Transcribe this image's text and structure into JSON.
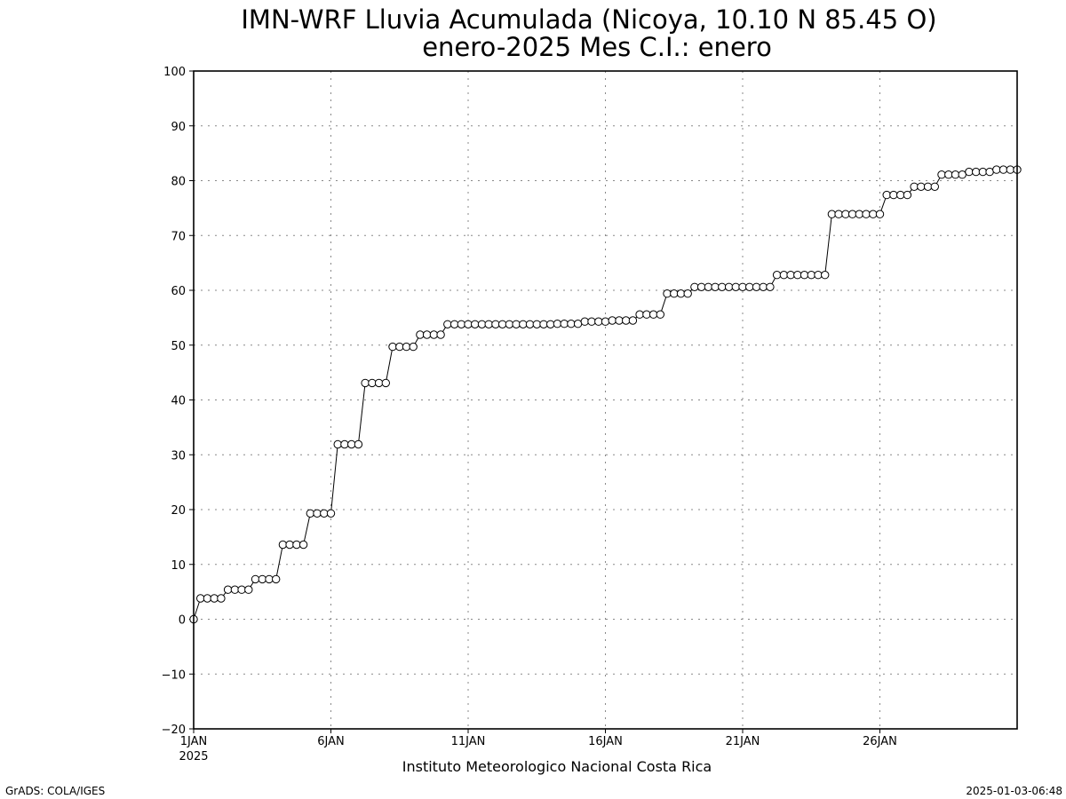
{
  "chart_data": {
    "type": "line",
    "title_line1": "IMN-WRF  Lluvia Acumulada (Nicoya, 10.10  N 85.45  O)",
    "title_line2": "enero-2025 Mes C.I.: enero",
    "xlabel": "Instituto Meteorologico Nacional Costa Rica",
    "ylabel": "",
    "ylim": [
      -20,
      100
    ],
    "yticks": [
      -20,
      -10,
      0,
      10,
      20,
      30,
      40,
      50,
      60,
      70,
      80,
      90,
      100
    ],
    "xlim": [
      1,
      31
    ],
    "xticks": [
      {
        "day": 1,
        "label": "1JAN",
        "sublabel": "2025"
      },
      {
        "day": 6,
        "label": "6JAN",
        "sublabel": ""
      },
      {
        "day": 11,
        "label": "11JAN",
        "sublabel": ""
      },
      {
        "day": 16,
        "label": "16JAN",
        "sublabel": ""
      },
      {
        "day": 21,
        "label": "21JAN",
        "sublabel": ""
      },
      {
        "day": 26,
        "label": "26JAN",
        "sublabel": ""
      }
    ],
    "grid": true,
    "points_per_day": 4,
    "values": [
      0,
      3.8,
      3.8,
      3.8,
      3.8,
      5.4,
      5.4,
      5.4,
      5.4,
      7.3,
      7.3,
      7.3,
      7.3,
      13.6,
      13.6,
      13.6,
      13.6,
      19.3,
      19.3,
      19.3,
      19.3,
      31.9,
      31.9,
      31.9,
      31.9,
      43.1,
      43.1,
      43.1,
      43.1,
      49.7,
      49.7,
      49.7,
      49.7,
      51.9,
      51.9,
      51.9,
      51.9,
      53.8,
      53.8,
      53.8,
      53.8,
      53.8,
      53.8,
      53.8,
      53.8,
      53.8,
      53.8,
      53.8,
      53.8,
      53.8,
      53.8,
      53.8,
      53.8,
      53.9,
      53.9,
      53.9,
      53.9,
      54.3,
      54.3,
      54.3,
      54.3,
      54.5,
      54.5,
      54.5,
      54.5,
      55.6,
      55.6,
      55.6,
      55.6,
      59.4,
      59.4,
      59.4,
      59.4,
      60.6,
      60.6,
      60.6,
      60.6,
      60.6,
      60.6,
      60.6,
      60.6,
      60.6,
      60.6,
      60.6,
      60.6,
      62.8,
      62.8,
      62.8,
      62.8,
      62.8,
      62.8,
      62.8,
      62.8,
      73.9,
      73.9,
      73.9,
      73.9,
      73.9,
      73.9,
      73.9,
      73.9,
      77.4,
      77.4,
      77.4,
      77.4,
      78.9,
      78.9,
      78.9,
      78.9,
      81.1,
      81.1,
      81.1,
      81.1,
      81.6,
      81.6,
      81.6,
      81.6,
      82.0,
      82.0,
      82.0,
      82.0
    ]
  },
  "footer": {
    "left": "GrADS: COLA/IGES",
    "right": "2025-01-03-06:48"
  }
}
